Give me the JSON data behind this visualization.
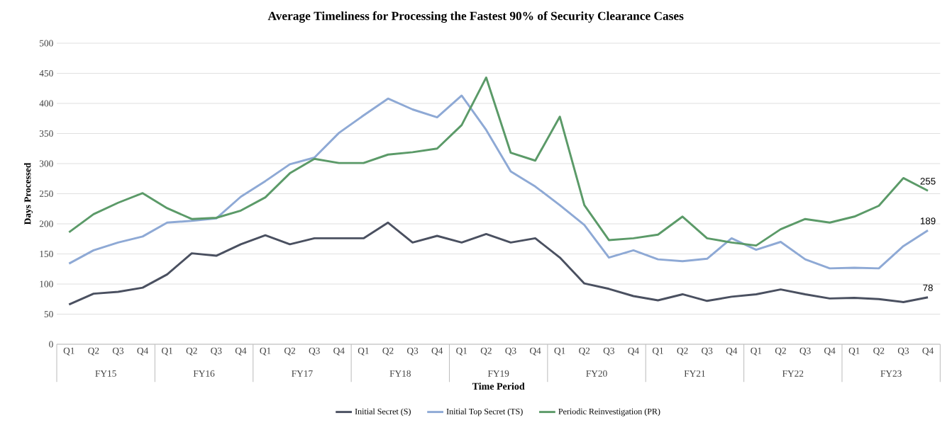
{
  "chart_data": {
    "type": "line",
    "title": "Average Timeliness for Processing the Fastest 90% of Security Clearance Cases",
    "xlabel": "Time Period",
    "ylabel": "Days Processed",
    "categories": [
      "Q1",
      "Q2",
      "Q3",
      "Q4",
      "Q1",
      "Q2",
      "Q3",
      "Q4",
      "Q1",
      "Q2",
      "Q3",
      "Q4",
      "Q1",
      "Q2",
      "Q3",
      "Q4",
      "Q1",
      "Q2",
      "Q3",
      "Q4",
      "Q1",
      "Q2",
      "Q3",
      "Q4",
      "Q1",
      "Q2",
      "Q3",
      "Q4",
      "Q1",
      "Q2",
      "Q3",
      "Q4",
      "Q1",
      "Q2",
      "Q3",
      "Q4"
    ],
    "annotations": [
      "FY15",
      "FY16",
      "FY17",
      "FY18",
      "FY19",
      "FY20",
      "FY21",
      "FY22",
      "FY23"
    ],
    "series": [
      {
        "name": "Initial Secret (S)",
        "color": "#4a5060",
        "values": [
          66,
          84,
          87,
          94,
          116,
          151,
          147,
          166,
          181,
          166,
          176,
          176,
          176,
          202,
          169,
          180,
          169,
          183,
          169,
          176,
          144,
          101,
          92,
          80,
          73,
          83,
          72,
          79,
          83,
          91,
          83,
          76,
          77,
          75,
          70,
          78
        ],
        "value_labels": [
          null,
          null,
          null,
          null,
          null,
          null,
          null,
          null,
          null,
          null,
          null,
          null,
          null,
          null,
          null,
          null,
          null,
          null,
          null,
          null,
          null,
          null,
          null,
          null,
          null,
          null,
          null,
          null,
          null,
          null,
          null,
          null,
          null,
          null,
          null,
          "78"
        ]
      },
      {
        "name": "Initial Top Secret (TS)",
        "color": "#8ea9d5",
        "values": [
          134,
          156,
          169,
          179,
          202,
          205,
          209,
          245,
          271,
          299,
          310,
          351,
          380,
          408,
          390,
          377,
          413,
          356,
          287,
          262,
          231,
          198,
          144,
          156,
          141,
          138,
          142,
          176,
          157,
          170,
          141,
          126,
          127,
          126,
          163,
          189
        ],
        "value_labels": [
          null,
          null,
          null,
          null,
          null,
          null,
          null,
          null,
          null,
          null,
          null,
          null,
          null,
          null,
          null,
          null,
          null,
          null,
          null,
          null,
          null,
          null,
          null,
          null,
          null,
          null,
          null,
          null,
          null,
          null,
          null,
          null,
          null,
          null,
          null,
          "189"
        ]
      },
      {
        "name": "Periodic Reinvestigation (PR)",
        "color": "#5b9a68",
        "values": [
          186,
          216,
          235,
          251,
          226,
          208,
          210,
          222,
          244,
          284,
          308,
          301,
          301,
          315,
          319,
          325,
          364,
          443,
          318,
          305,
          378,
          231,
          173,
          176,
          182,
          212,
          176,
          169,
          164,
          191,
          208,
          202,
          212,
          230,
          276,
          255
        ],
        "value_labels": [
          null,
          null,
          null,
          null,
          null,
          null,
          null,
          null,
          null,
          null,
          null,
          null,
          null,
          null,
          null,
          null,
          null,
          null,
          null,
          null,
          null,
          null,
          null,
          null,
          null,
          null,
          null,
          null,
          null,
          null,
          null,
          null,
          null,
          null,
          null,
          "255"
        ]
      }
    ],
    "ylim": [
      0,
      500
    ],
    "yticks": [
      0,
      50,
      100,
      150,
      200,
      250,
      300,
      350,
      400,
      450,
      500
    ],
    "grid": "y",
    "legend": "bottom",
    "marker": "none",
    "line_style": "solid"
  }
}
